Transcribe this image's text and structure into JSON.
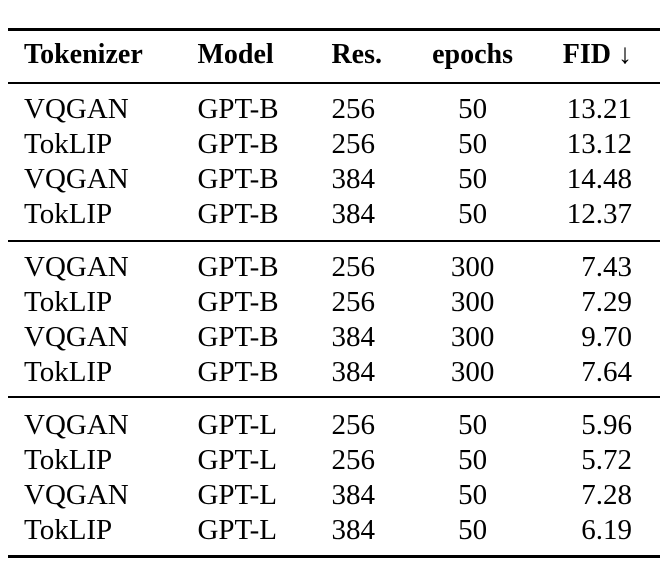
{
  "table": {
    "headers": [
      "Tokenizer",
      "Model",
      "Res.",
      "epochs",
      "FID ↓"
    ],
    "groups": [
      [
        [
          "VQGAN",
          "GPT-B",
          "256",
          "50",
          "13.21"
        ],
        [
          "TokLIP",
          "GPT-B",
          "256",
          "50",
          "13.12"
        ],
        [
          "VQGAN",
          "GPT-B",
          "384",
          "50",
          "14.48"
        ],
        [
          "TokLIP",
          "GPT-B",
          "384",
          "50",
          "12.37"
        ]
      ],
      [
        [
          "VQGAN",
          "GPT-B",
          "256",
          "300",
          "7.43"
        ],
        [
          "TokLIP",
          "GPT-B",
          "256",
          "300",
          "7.29"
        ],
        [
          "VQGAN",
          "GPT-B",
          "384",
          "300",
          "9.70"
        ],
        [
          "TokLIP",
          "GPT-B",
          "384",
          "300",
          "7.64"
        ]
      ],
      [
        [
          "VQGAN",
          "GPT-L",
          "256",
          "50",
          "5.96"
        ],
        [
          "TokLIP",
          "GPT-L",
          "256",
          "50",
          "5.72"
        ],
        [
          "VQGAN",
          "GPT-L",
          "384",
          "50",
          "7.28"
        ],
        [
          "TokLIP",
          "GPT-L",
          "384",
          "50",
          "6.19"
        ]
      ]
    ]
  }
}
